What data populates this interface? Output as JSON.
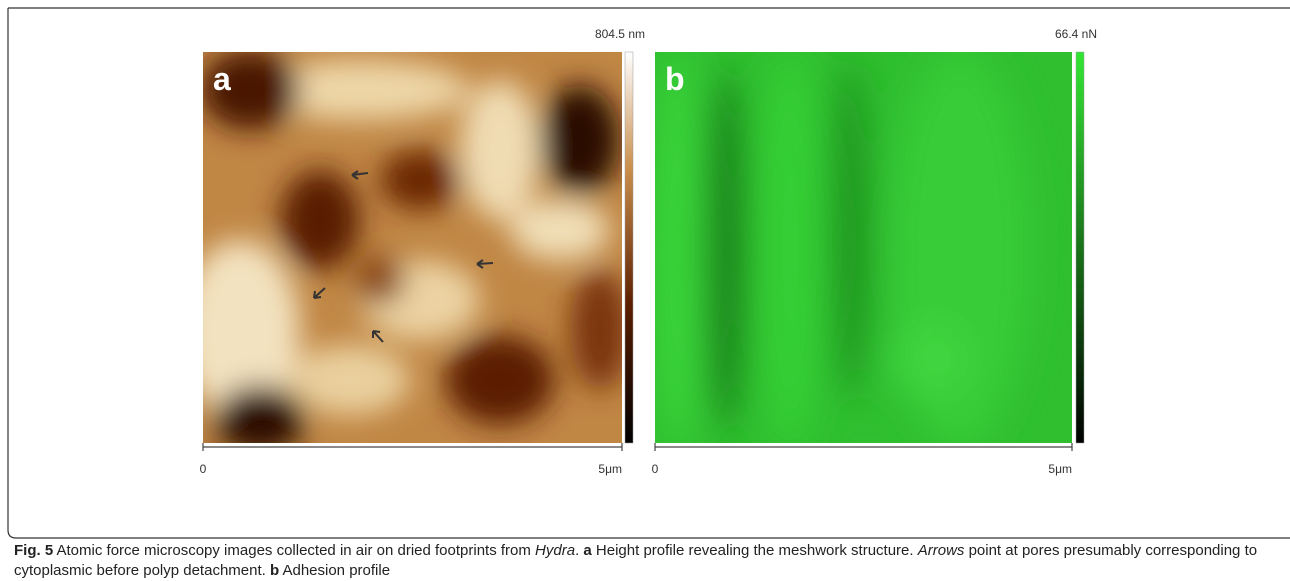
{
  "panels": [
    {
      "label": "a",
      "scale_max": "804.5 nm",
      "axis_start": "0",
      "axis_end": "5μm"
    },
    {
      "label": "b",
      "scale_max": "66.4 nN",
      "axis_start": "0",
      "axis_end": "5μm"
    }
  ],
  "caption": [
    "Fig. 5",
    " Atomic force microscopy images collected in air on dried footprints from ",
    "Hydra",
    ". ",
    "a",
    " Height profile revealing the meshwork structure. ",
    "Arrows",
    " point at pores presumably corresponding to cytoplasmic before polyp detachment. ",
    "b",
    " Adhesion profile"
  ]
}
